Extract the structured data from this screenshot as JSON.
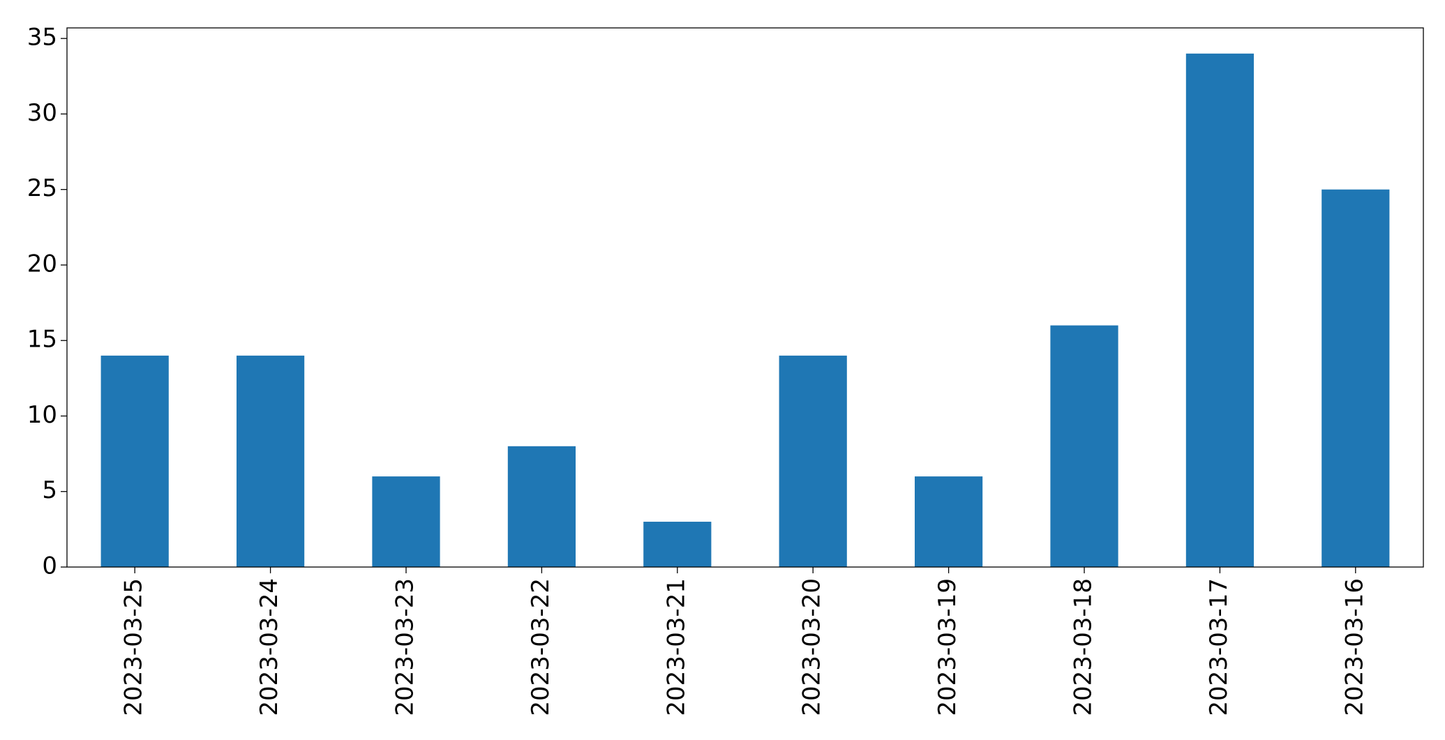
{
  "chart_data": {
    "type": "bar",
    "categories": [
      "2023-03-25",
      "2023-03-24",
      "2023-03-23",
      "2023-03-22",
      "2023-03-21",
      "2023-03-20",
      "2023-03-19",
      "2023-03-18",
      "2023-03-17",
      "2023-03-16"
    ],
    "values": [
      14,
      14,
      6,
      8,
      3,
      14,
      6,
      16,
      34,
      25
    ],
    "color": "#1f77b4",
    "ylim": [
      0,
      35.7
    ],
    "yticks": [
      0,
      5,
      10,
      15,
      20,
      25,
      30,
      35
    ],
    "grid": false
  }
}
